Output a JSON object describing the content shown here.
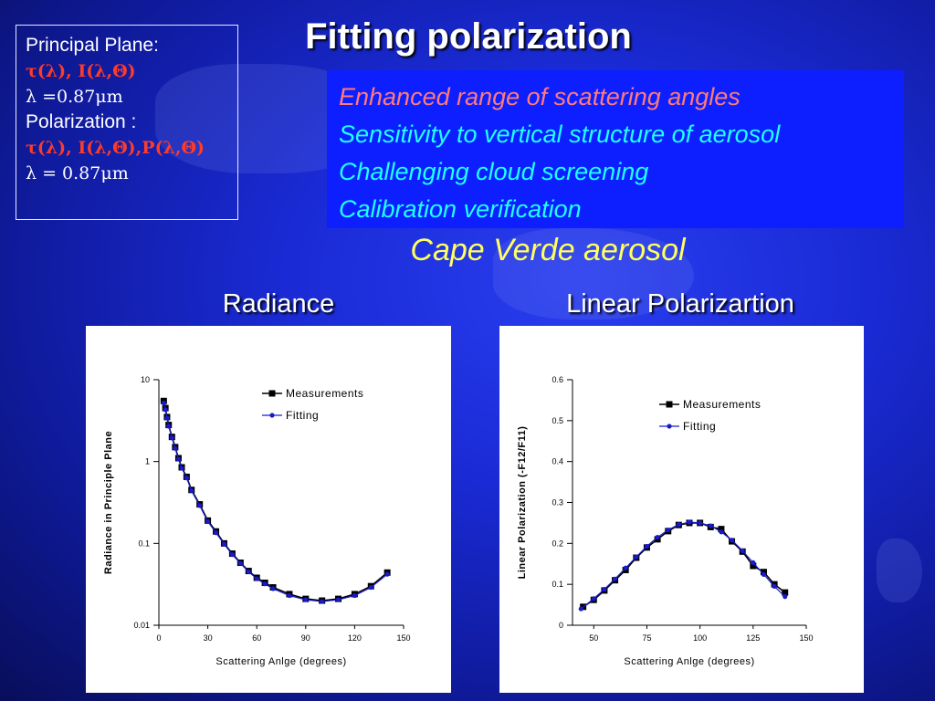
{
  "title": "Fitting polarization",
  "info_box": {
    "lines": [
      {
        "text": "Principal Plane:",
        "style": "plain"
      },
      {
        "text": "τ(λ), I(λ,Θ)",
        "style": "red"
      },
      {
        "text": "λ =0.87μm",
        "style": "sym"
      },
      {
        "text": "Polarization :",
        "style": "plain"
      },
      {
        "text": "τ(λ), I(λ,Θ),P(λ,Θ)",
        "style": "red"
      },
      {
        "text": "λ = 0.87μm",
        "style": "sym"
      }
    ]
  },
  "highlights": [
    "Enhanced range of scattering angles",
    "Sensitivity to vertical structure of aerosol",
    "Challenging cloud screening",
    "Calibration verification"
  ],
  "subtitle": "Cape Verde aerosol",
  "colors": {
    "measurement": "#000000",
    "fitting": "#1a1acc",
    "highlight_box": "#0d1fff",
    "subtitle": "#ffff5e"
  },
  "chart_data": [
    {
      "type": "line",
      "title": "Radiance",
      "xlabel": "Scattering Anlge (degrees)",
      "ylabel": "Radiance in Principle Plane",
      "xlim": [
        0,
        150
      ],
      "ylim": [
        0.01,
        10
      ],
      "yscale": "log",
      "xticks": [
        "0",
        "30",
        "60",
        "90",
        "120",
        "150"
      ],
      "yticks": [
        "0.01",
        "0.1",
        "1",
        "10"
      ],
      "legend_position": "top-right",
      "series": [
        {
          "name": "Measurements",
          "marker": "square",
          "x": [
            3,
            4,
            5,
            6,
            8,
            10,
            12,
            14,
            17,
            20,
            25,
            30,
            35,
            40,
            45,
            50,
            55,
            60,
            65,
            70,
            80,
            90,
            100,
            110,
            120,
            130,
            140
          ],
          "y": [
            5.5,
            4.5,
            3.5,
            2.8,
            2.0,
            1.5,
            1.1,
            0.85,
            0.65,
            0.45,
            0.3,
            0.19,
            0.14,
            0.1,
            0.075,
            0.058,
            0.046,
            0.038,
            0.033,
            0.029,
            0.024,
            0.021,
            0.02,
            0.021,
            0.024,
            0.03,
            0.044
          ]
        },
        {
          "name": "Fitting",
          "marker": "circle",
          "x": [
            3,
            4,
            5,
            6,
            8,
            10,
            12,
            14,
            17,
            20,
            25,
            30,
            35,
            40,
            45,
            50,
            55,
            60,
            65,
            70,
            80,
            90,
            100,
            110,
            120,
            130,
            140
          ],
          "y": [
            5.2,
            4.3,
            3.4,
            2.7,
            1.95,
            1.45,
            1.07,
            0.83,
            0.63,
            0.44,
            0.29,
            0.185,
            0.135,
            0.098,
            0.073,
            0.057,
            0.045,
            0.037,
            0.032,
            0.028,
            0.023,
            0.0205,
            0.0195,
            0.0205,
            0.023,
            0.029,
            0.042
          ]
        }
      ]
    },
    {
      "type": "line",
      "title": "Linear Polarizartion",
      "xlabel": "Scattering Anlge (degrees)",
      "ylabel": "Linear Polarization (-F12/F11)",
      "xlim": [
        40,
        150
      ],
      "ylim": [
        0,
        0.6
      ],
      "xticks": [
        "50",
        "75",
        "100",
        "125",
        "150"
      ],
      "yticks": [
        "0",
        "0.1",
        "0.2",
        "0.3",
        "0.4",
        "0.5",
        "0.6"
      ],
      "legend_position": "top-right",
      "series": [
        {
          "name": "Measurements",
          "marker": "square",
          "x": [
            45,
            50,
            55,
            60,
            65,
            70,
            75,
            80,
            85,
            90,
            95,
            100,
            105,
            110,
            115,
            120,
            125,
            130,
            135,
            140
          ],
          "y": [
            0.045,
            0.062,
            0.085,
            0.11,
            0.135,
            0.165,
            0.19,
            0.21,
            0.23,
            0.245,
            0.25,
            0.25,
            0.24,
            0.235,
            0.205,
            0.18,
            0.145,
            0.13,
            0.1,
            0.08
          ]
        },
        {
          "name": "Fitting",
          "marker": "circle",
          "x": [
            44,
            50,
            55,
            60,
            65,
            70,
            75,
            80,
            85,
            90,
            95,
            100,
            105,
            110,
            115,
            120,
            125,
            130,
            135,
            140
          ],
          "y": [
            0.04,
            0.065,
            0.088,
            0.113,
            0.14,
            0.167,
            0.193,
            0.215,
            0.233,
            0.246,
            0.252,
            0.25,
            0.243,
            0.228,
            0.208,
            0.182,
            0.153,
            0.124,
            0.095,
            0.07
          ]
        }
      ]
    }
  ]
}
